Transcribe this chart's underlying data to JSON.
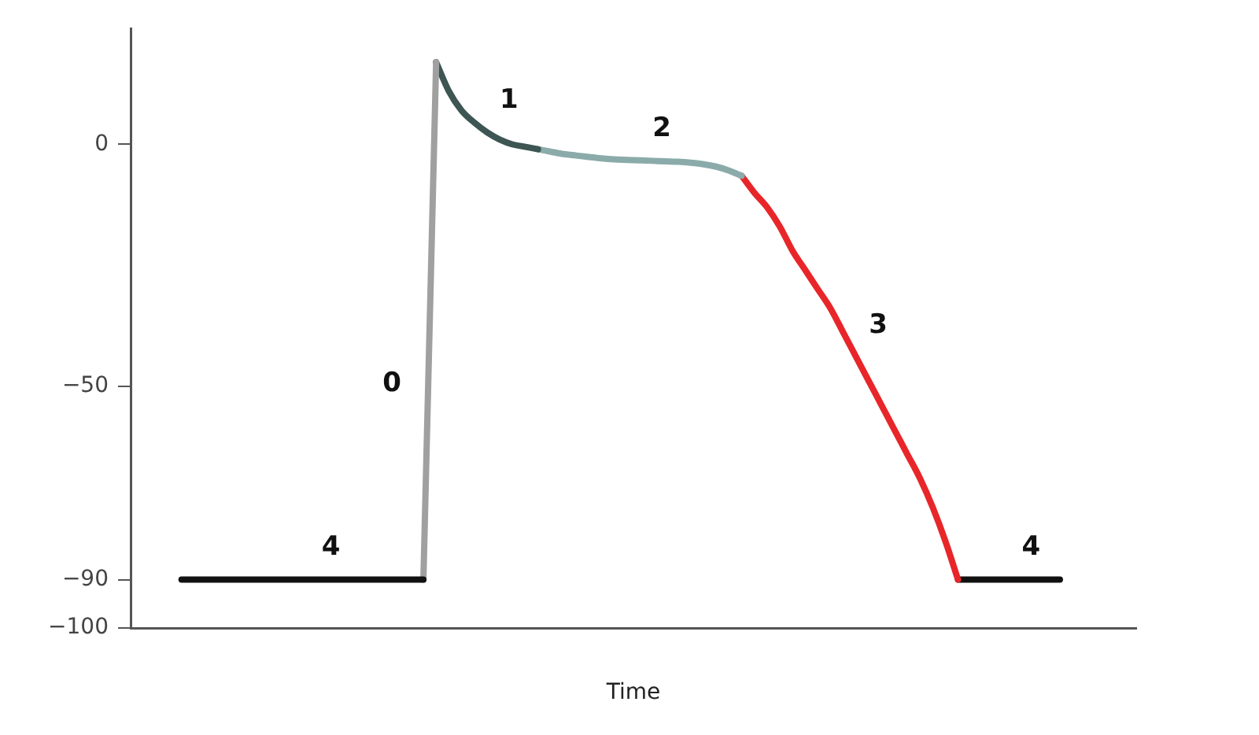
{
  "chart_data": {
    "type": "line",
    "xlabel": "Time",
    "categories": [
      null,
      null,
      null,
      null,
      null,
      null,
      null,
      null,
      null,
      null,
      null,
      null,
      null,
      null,
      null,
      null,
      null,
      null,
      null,
      null,
      null,
      null,
      null,
      null,
      null,
      null,
      null,
      null,
      null,
      null,
      null,
      null,
      null,
      null,
      null,
      null,
      null,
      null,
      null,
      null,
      null,
      null,
      null,
      null,
      null,
      null,
      null,
      null,
      null,
      null,
      null,
      null,
      null,
      null,
      null,
      null,
      null,
      null,
      null,
      null,
      null,
      null,
      null,
      null,
      null,
      null,
      null,
      null,
      null,
      null,
      null,
      null,
      null,
      null,
      null,
      null,
      null,
      null,
      null,
      null
    ],
    "ylim": [
      -100,
      24
    ],
    "yticks": [
      0,
      -50,
      -90,
      -100
    ],
    "marker": "none",
    "series": [
      {
        "name": "4",
        "color": "#111111",
        "values": [
          null,
          null,
          null,
          null,
          -90,
          -90,
          -90,
          -90,
          -90,
          -90,
          -90,
          -90,
          -90,
          -90,
          -90,
          -90,
          -90,
          -90,
          -90,
          -90,
          -90,
          -90,
          -90,
          -90,
          null,
          null,
          null,
          null,
          null,
          null,
          null,
          null,
          null,
          null,
          null,
          null,
          null,
          null,
          null,
          null,
          null,
          null,
          null,
          null,
          null,
          null,
          null,
          null,
          null,
          null,
          null,
          null,
          null,
          null,
          null,
          null,
          null,
          null,
          null,
          null,
          null,
          null,
          null,
          null,
          null,
          null,
          null,
          null,
          null,
          null,
          null,
          null,
          null,
          null,
          null,
          null,
          null,
          null,
          null,
          null
        ]
      },
      {
        "name": "0",
        "color": "#a0a0a0",
        "values": [
          null,
          null,
          null,
          null,
          null,
          null,
          null,
          null,
          null,
          null,
          null,
          null,
          null,
          null,
          null,
          null,
          null,
          null,
          null,
          null,
          null,
          null,
          null,
          -90,
          17,
          null,
          null,
          null,
          null,
          null,
          null,
          null,
          null,
          null,
          null,
          null,
          null,
          null,
          null,
          null,
          null,
          null,
          null,
          null,
          null,
          null,
          null,
          null,
          null,
          null,
          null,
          null,
          null,
          null,
          null,
          null,
          null,
          null,
          null,
          null,
          null,
          null,
          null,
          null,
          null,
          null,
          null,
          null,
          null,
          null,
          null,
          null,
          null,
          null,
          null,
          null,
          null,
          null,
          null,
          null
        ]
      },
      {
        "name": "1",
        "color": "#3d5553",
        "values": [
          null,
          null,
          null,
          null,
          null,
          null,
          null,
          null,
          null,
          null,
          null,
          null,
          null,
          null,
          null,
          null,
          null,
          null,
          null,
          null,
          null,
          null,
          null,
          null,
          17,
          11,
          7,
          4.5,
          2.5,
          1,
          0,
          -0.5,
          -1,
          null,
          null,
          null,
          null,
          null,
          null,
          null,
          null,
          null,
          null,
          null,
          null,
          null,
          null,
          null,
          null,
          null,
          null,
          null,
          null,
          null,
          null,
          null,
          null,
          null,
          null,
          null,
          null,
          null,
          null,
          null,
          null,
          null,
          null,
          null,
          null,
          null,
          null,
          null,
          null,
          null,
          null,
          null,
          null,
          null,
          null,
          null
        ]
      },
      {
        "name": "2",
        "color": "#8aaba9",
        "values": [
          null,
          null,
          null,
          null,
          null,
          null,
          null,
          null,
          null,
          null,
          null,
          null,
          null,
          null,
          null,
          null,
          null,
          null,
          null,
          null,
          null,
          null,
          null,
          null,
          null,
          null,
          null,
          null,
          null,
          null,
          null,
          null,
          -1,
          -1.5,
          -2,
          -2.3,
          -2.6,
          -2.9,
          -3.1,
          -3.2,
          -3.3,
          -3.4,
          -3.5,
          -3.6,
          -3.8,
          -4.1,
          -4.6,
          -5.4,
          -6.5,
          null,
          null,
          null,
          null,
          null,
          null,
          null,
          null,
          null,
          null,
          null,
          null,
          null,
          null,
          null,
          null,
          null,
          null,
          null,
          null,
          null,
          null,
          null,
          null,
          null,
          null,
          null,
          null,
          null,
          null,
          null
        ]
      },
      {
        "name": "3",
        "color": "#e8262a",
        "values": [
          null,
          null,
          null,
          null,
          null,
          null,
          null,
          null,
          null,
          null,
          null,
          null,
          null,
          null,
          null,
          null,
          null,
          null,
          null,
          null,
          null,
          null,
          null,
          null,
          null,
          null,
          null,
          null,
          null,
          null,
          null,
          null,
          null,
          null,
          null,
          null,
          null,
          null,
          null,
          null,
          null,
          null,
          null,
          null,
          null,
          null,
          null,
          null,
          -6.5,
          -10,
          -13,
          -17,
          -22,
          -26,
          -30,
          -34,
          -39,
          -44,
          -49,
          -54,
          -59,
          -64,
          -69,
          -75,
          -82,
          -90,
          null,
          null,
          null,
          null,
          null,
          null,
          null,
          null,
          null,
          null,
          null,
          null,
          null,
          null
        ]
      },
      {
        "name": "4",
        "color": "#111111",
        "values": [
          null,
          null,
          null,
          null,
          null,
          null,
          null,
          null,
          null,
          null,
          null,
          null,
          null,
          null,
          null,
          null,
          null,
          null,
          null,
          null,
          null,
          null,
          null,
          null,
          null,
          null,
          null,
          null,
          null,
          null,
          null,
          null,
          null,
          null,
          null,
          null,
          null,
          null,
          null,
          null,
          null,
          null,
          null,
          null,
          null,
          null,
          null,
          null,
          null,
          null,
          null,
          null,
          null,
          null,
          null,
          null,
          null,
          null,
          null,
          null,
          null,
          null,
          null,
          null,
          null,
          -90,
          -90,
          -90,
          -90,
          -90,
          -90,
          -90,
          -90,
          -90,
          null,
          null,
          null,
          null,
          null,
          null
        ]
      }
    ]
  }
}
